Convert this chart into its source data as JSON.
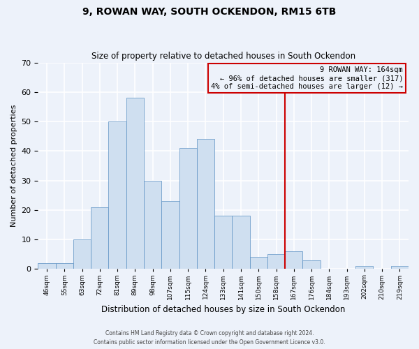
{
  "title": "9, ROWAN WAY, SOUTH OCKENDON, RM15 6TB",
  "subtitle": "Size of property relative to detached houses in South Ockendon",
  "xlabel": "Distribution of detached houses by size in South Ockendon",
  "ylabel": "Number of detached properties",
  "footnote1": "Contains HM Land Registry data © Crown copyright and database right 2024.",
  "footnote2": "Contains public sector information licensed under the Open Government Licence v3.0.",
  "bin_labels": [
    "46sqm",
    "55sqm",
    "63sqm",
    "72sqm",
    "81sqm",
    "89sqm",
    "98sqm",
    "107sqm",
    "115sqm",
    "124sqm",
    "133sqm",
    "141sqm",
    "150sqm",
    "158sqm",
    "167sqm",
    "176sqm",
    "184sqm",
    "193sqm",
    "202sqm",
    "210sqm",
    "219sqm"
  ],
  "bar_heights": [
    2,
    2,
    10,
    21,
    50,
    58,
    30,
    23,
    41,
    44,
    18,
    18,
    4,
    5,
    6,
    3,
    0,
    0,
    1,
    0,
    1
  ],
  "bar_color": "#cfdff0",
  "bar_edge_color": "#5a8fc3",
  "ylim": [
    0,
    70
  ],
  "yticks": [
    0,
    10,
    20,
    30,
    40,
    50,
    60,
    70
  ],
  "vline_color": "#cc0000",
  "annotation_title": "9 ROWAN WAY: 164sqm",
  "annotation_line1": "← 96% of detached houses are smaller (317)",
  "annotation_line2": "4% of semi-detached houses are larger (12) →",
  "annotation_box_color": "#cc0000",
  "background_color": "#edf2fa"
}
